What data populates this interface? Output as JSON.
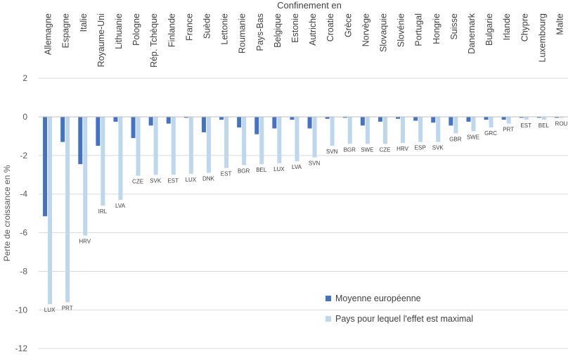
{
  "chart_data": {
    "type": "bar",
    "title": "Confinement en",
    "ylabel": "Perte de croissance en %",
    "ylim": [
      -12,
      2
    ],
    "yticks": [
      2,
      0,
      -2,
      -4,
      -6,
      -8,
      -10,
      -12
    ],
    "grid": true,
    "legend_position": "bottom-right",
    "categories": [
      "Allemagne",
      "Espagne",
      "Italie",
      "Royaume-Uni",
      "Lithuanie",
      "Pologne",
      "Rép. Tchèque",
      "Finlande",
      "France",
      "Suède",
      "Lettonie",
      "Roumanie",
      "Pays-Bas",
      "Belgique",
      "Estonie",
      "Autriche",
      "Croatie",
      "Grèce",
      "Norvège",
      "Slovaquie",
      "Slovénie",
      "Portugal",
      "Hongrie",
      "Suisse",
      "Danemark",
      "Bulgarie",
      "Irlande",
      "Chypre",
      "Luxembourg",
      "Malte"
    ],
    "series": [
      {
        "name": "Moyenne européenne",
        "color": "#4472C4",
        "values": [
          -5.15,
          -1.3,
          -2.45,
          -1.5,
          -0.25,
          -1.1,
          -0.45,
          -0.35,
          -0.05,
          -0.8,
          -0.15,
          -0.55,
          -0.9,
          -0.6,
          -0.15,
          -0.6,
          -0.1,
          -0.05,
          -0.45,
          -0.25,
          -0.1,
          -0.2,
          -0.3,
          -0.45,
          -0.25,
          -0.15,
          -0.15,
          -0.05,
          -0.05,
          -0.05
        ]
      },
      {
        "name": "Pays pour lequel l'effet est maximal",
        "color": "#BDD7EE",
        "values": [
          -9.7,
          -9.6,
          -6.15,
          -4.6,
          -4.3,
          -3.05,
          -3.0,
          -3.0,
          -2.95,
          -2.9,
          -2.65,
          -2.5,
          -2.45,
          -2.4,
          -2.3,
          -2.1,
          -1.5,
          -1.4,
          -1.4,
          -1.4,
          -1.35,
          -1.3,
          -1.3,
          -0.85,
          -0.75,
          -0.55,
          -0.35,
          -0.15,
          -0.15,
          -0.05
        ],
        "labels": [
          "LUX",
          "PRT",
          "HRV",
          "IRL",
          "LVA",
          "CZE",
          "SVK",
          "EST",
          "LUX",
          "DNK",
          "EST",
          "BGR",
          "BEL",
          "LUX",
          "LVA",
          "SVN",
          "SVN",
          "BGR",
          "SWE",
          "CZE",
          "HRV",
          "ESP",
          "SVK",
          "GBR",
          "SWE",
          "GRC",
          "PRT",
          "EST",
          "BEL",
          "ROU"
        ]
      }
    ]
  }
}
